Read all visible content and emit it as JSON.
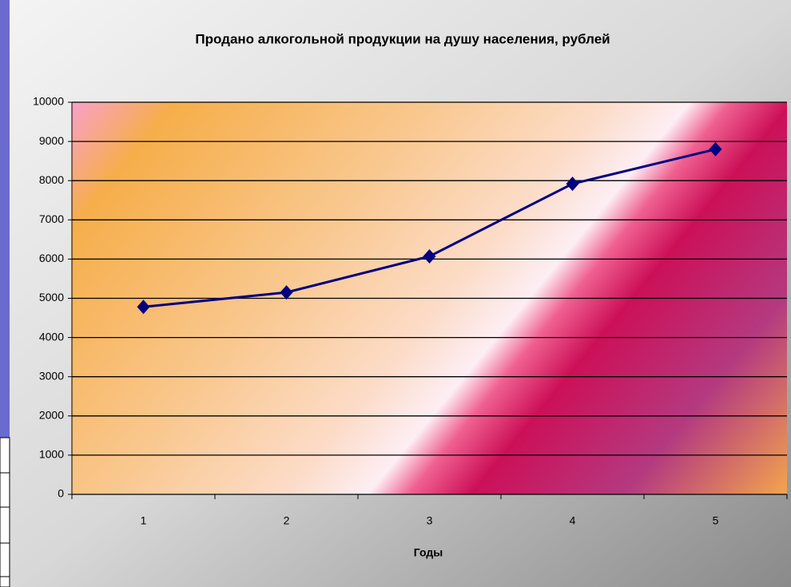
{
  "chart_data": {
    "type": "line",
    "title": "Продано алкогольной продукции на душу населения, рублей",
    "x_label": "Годы",
    "categories": [
      "1",
      "2",
      "3",
      "4",
      "5"
    ],
    "series": [
      {
        "name": "Продано алкогольной продукции",
        "color": "#000080",
        "values": [
          4780,
          5150,
          6070,
          7920,
          8800
        ]
      }
    ],
    "ylim": [
      0,
      10000
    ],
    "yticks": [
      0,
      1000,
      2000,
      3000,
      4000,
      5000,
      6000,
      7000,
      8000,
      9000,
      10000
    ],
    "grid": true
  }
}
